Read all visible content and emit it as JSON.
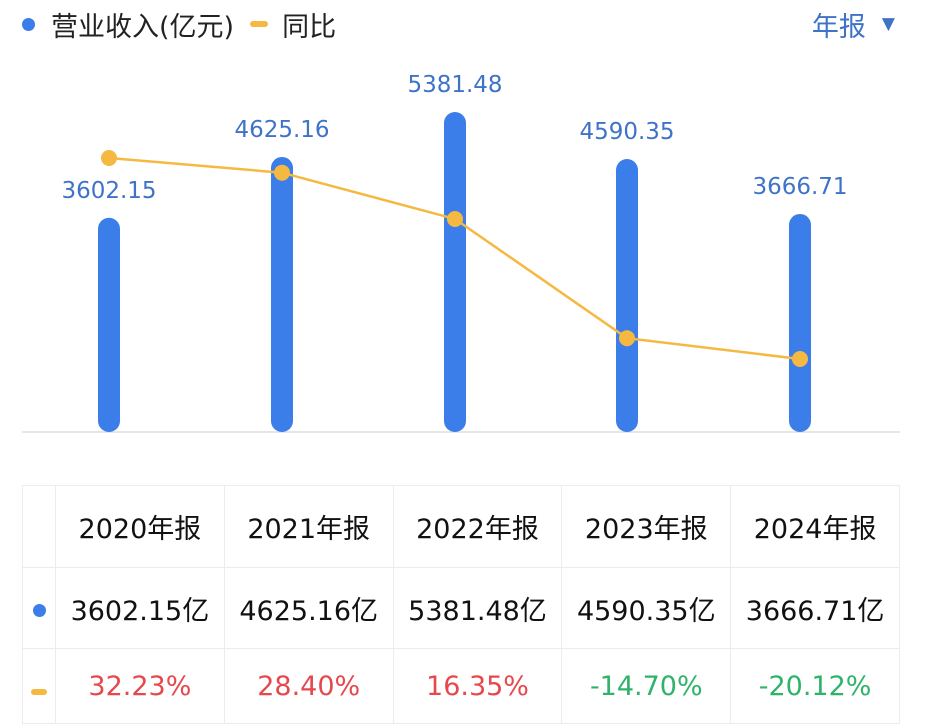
{
  "legend": {
    "revenue_label": "营业收入(亿元)",
    "yoy_label": "同比"
  },
  "period_selector": {
    "label": "年报",
    "caret": "▼"
  },
  "colors": {
    "bar": "#3b7de9",
    "line": "#f5b942",
    "positive": "#e5484d",
    "negative": "#2fb36b",
    "label": "#3f73c8",
    "axis": "#dedede"
  },
  "chart_data": {
    "type": "bar",
    "categories": [
      "2020年报",
      "2021年报",
      "2022年报",
      "2023年报",
      "2024年报"
    ],
    "series": [
      {
        "name": "营业收入(亿元)",
        "type": "bar",
        "values": [
          3602.15,
          4625.16,
          5381.48,
          4590.35,
          3666.71
        ],
        "labels": [
          "3602.15",
          "4625.16",
          "5381.48",
          "4590.35",
          "3666.71"
        ]
      },
      {
        "name": "同比",
        "type": "line",
        "unit": "%",
        "values": [
          32.23,
          28.4,
          16.35,
          -14.7,
          -20.12
        ]
      }
    ]
  },
  "table": {
    "header": [
      "2020年报",
      "2021年报",
      "2022年报",
      "2023年报",
      "2024年报"
    ],
    "revenue_row": [
      "3602.15亿",
      "4625.16亿",
      "5381.48亿",
      "4590.35亿",
      "3666.71亿"
    ],
    "yoy_row": [
      "32.23%",
      "28.40%",
      "16.35%",
      "-14.70%",
      "-20.12%"
    ]
  }
}
